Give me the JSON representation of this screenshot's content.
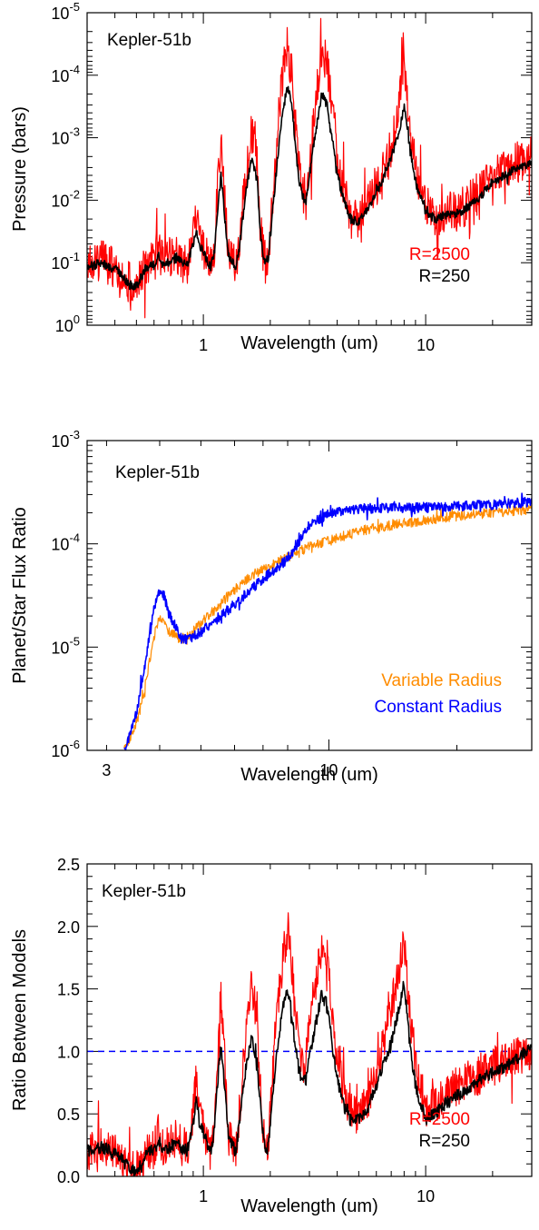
{
  "chart_data": [
    {
      "type": "line",
      "annotation": "Kepler-51b",
      "xlabel": "Wavelength (um)",
      "ylabel": "Pressure (bars)",
      "xscale": "log",
      "yscale": "log",
      "yaxis_inverted": true,
      "xlim": [
        0.3,
        30
      ],
      "ylim": [
        1,
        1e-05
      ],
      "xticks": [
        {
          "value": 1,
          "label": "1"
        },
        {
          "value": 10,
          "label": "10"
        }
      ],
      "yticks": [
        {
          "value": 1e-05,
          "base": "10",
          "exp": "-5"
        },
        {
          "value": 0.0001,
          "base": "10",
          "exp": "-4"
        },
        {
          "value": 0.001,
          "base": "10",
          "exp": "-3"
        },
        {
          "value": 0.01,
          "base": "10",
          "exp": "-2"
        },
        {
          "value": 0.1,
          "base": "10",
          "exp": "-1"
        },
        {
          "value": 1,
          "base": "10",
          "exp": "0"
        }
      ],
      "legend_placement": "bottom-right",
      "series": [
        {
          "name": "R=2500",
          "color": "#ff0000",
          "noise": 0.55,
          "x": [
            0.3,
            0.32,
            0.35,
            0.38,
            0.4,
            0.42,
            0.45,
            0.48,
            0.5,
            0.53,
            0.56,
            0.6,
            0.63,
            0.66,
            0.7,
            0.75,
            0.78,
            0.8,
            0.85,
            0.9,
            0.93,
            0.96,
            1.0,
            1.05,
            1.08,
            1.12,
            1.15,
            1.2,
            1.25,
            1.3,
            1.35,
            1.4,
            1.45,
            1.55,
            1.65,
            1.75,
            1.8,
            1.85,
            1.9,
            1.95,
            2.0,
            2.1,
            2.2,
            2.3,
            2.4,
            2.5,
            2.6,
            2.7,
            2.8,
            2.9,
            3.0,
            3.2,
            3.4,
            3.6,
            3.8,
            4.0,
            4.3,
            4.6,
            5.0,
            5.5,
            6.0,
            6.5,
            7.0,
            7.5,
            8.0,
            8.5,
            9.0,
            10.0,
            11.0,
            12.0,
            14.0,
            16.0,
            18.0,
            20.0,
            23.0,
            26.0,
            30.0
          ],
          "y": [
            0.11,
            0.1,
            0.09,
            0.11,
            0.12,
            0.13,
            0.18,
            0.24,
            0.24,
            0.15,
            0.11,
            0.1,
            0.06,
            0.1,
            0.09,
            0.07,
            0.08,
            0.1,
            0.1,
            0.04,
            0.02,
            0.04,
            0.06,
            0.1,
            0.12,
            0.06,
            0.01,
            0.001,
            0.01,
            0.08,
            0.1,
            0.12,
            0.05,
            0.004,
            0.0008,
            0.003,
            0.02,
            0.06,
            0.1,
            0.1,
            0.03,
            0.003,
            0.0003,
            7e-05,
            4e-05,
            0.0001,
            0.0007,
            0.003,
            0.008,
            0.01,
            0.003,
            0.0003,
            4e-05,
            6e-05,
            0.0003,
            0.002,
            0.008,
            0.018,
            0.02,
            0.012,
            0.006,
            0.003,
            0.0015,
            0.0005,
            5e-05,
            0.0008,
            0.003,
            0.012,
            0.02,
            0.015,
            0.015,
            0.01,
            0.006,
            0.004,
            0.003,
            0.0025,
            0.002
          ]
        },
        {
          "name": "R=250",
          "color": "#000000",
          "noise": 0.12,
          "x": [
            0.3,
            0.32,
            0.35,
            0.38,
            0.4,
            0.42,
            0.45,
            0.48,
            0.5,
            0.53,
            0.56,
            0.6,
            0.63,
            0.66,
            0.7,
            0.75,
            0.78,
            0.8,
            0.85,
            0.9,
            0.93,
            0.96,
            1.0,
            1.05,
            1.08,
            1.12,
            1.15,
            1.2,
            1.25,
            1.3,
            1.35,
            1.4,
            1.45,
            1.55,
            1.65,
            1.75,
            1.8,
            1.85,
            1.9,
            1.95,
            2.0,
            2.1,
            2.2,
            2.3,
            2.4,
            2.5,
            2.6,
            2.7,
            2.8,
            2.9,
            3.0,
            3.2,
            3.4,
            3.6,
            3.8,
            4.0,
            4.3,
            4.6,
            5.0,
            5.5,
            6.0,
            6.5,
            7.0,
            7.5,
            8.0,
            8.5,
            9.0,
            10.0,
            11.0,
            12.0,
            14.0,
            16.0,
            18.0,
            20.0,
            23.0,
            26.0,
            30.0
          ],
          "y": [
            0.12,
            0.11,
            0.1,
            0.12,
            0.13,
            0.14,
            0.2,
            0.25,
            0.24,
            0.16,
            0.12,
            0.11,
            0.08,
            0.11,
            0.1,
            0.08,
            0.09,
            0.1,
            0.1,
            0.05,
            0.03,
            0.05,
            0.07,
            0.1,
            0.12,
            0.07,
            0.02,
            0.004,
            0.02,
            0.08,
            0.1,
            0.12,
            0.06,
            0.008,
            0.002,
            0.005,
            0.03,
            0.07,
            0.1,
            0.1,
            0.04,
            0.006,
            0.001,
            0.0003,
            0.00015,
            0.0003,
            0.0015,
            0.005,
            0.009,
            0.01,
            0.004,
            0.0008,
            0.0002,
            0.0003,
            0.001,
            0.004,
            0.01,
            0.02,
            0.022,
            0.014,
            0.008,
            0.004,
            0.002,
            0.001,
            0.0003,
            0.0015,
            0.005,
            0.015,
            0.02,
            0.018,
            0.016,
            0.012,
            0.008,
            0.005,
            0.004,
            0.003,
            0.0025
          ]
        }
      ]
    },
    {
      "type": "line",
      "annotation": "Kepler-51b",
      "xlabel": "Wavelength (um)",
      "ylabel": "Planet/Star Flux Ratio",
      "xscale": "log",
      "yscale": "log",
      "yaxis_inverted": false,
      "xlim": [
        2.7,
        30
      ],
      "ylim": [
        1e-06,
        0.001
      ],
      "xticks": [
        {
          "value": 3,
          "label": "3"
        },
        {
          "value": 10,
          "label": "10"
        }
      ],
      "yticks": [
        {
          "value": 1e-06,
          "base": "10",
          "exp": "-6"
        },
        {
          "value": 1e-05,
          "base": "10",
          "exp": "-5"
        },
        {
          "value": 0.0001,
          "base": "10",
          "exp": "-4"
        },
        {
          "value": 0.001,
          "base": "10",
          "exp": "-3"
        }
      ],
      "legend_placement": "bottom-right",
      "series": [
        {
          "name": "Variable Radius",
          "color": "#ff8c00",
          "noise": 0.08,
          "x": [
            3.3,
            3.4,
            3.55,
            3.7,
            3.8,
            3.9,
            4.0,
            4.1,
            4.2,
            4.35,
            4.5,
            4.7,
            5.0,
            5.5,
            6.0,
            6.5,
            7.0,
            7.5,
            8.0,
            8.5,
            9.0,
            10.0,
            11.0,
            12.0,
            14.0,
            16.0,
            18.0,
            20.0,
            25.0,
            30.0
          ],
          "y": [
            1e-06,
            1.3e-06,
            2e-06,
            4e-06,
            8e-06,
            1.4e-05,
            1.9e-05,
            1.8e-05,
            1.4e-05,
            1.3e-05,
            1.2e-05,
            1.3e-05,
            1.7e-05,
            2.5e-05,
            3.6e-05,
            4.7e-05,
            5.8e-05,
            6.6e-05,
            7.4e-05,
            8.4e-05,
            9.4e-05,
            0.000107,
            0.000121,
            0.000135,
            0.000151,
            0.000165,
            0.000176,
            0.000186,
            0.000203,
            0.000215
          ]
        },
        {
          "name": "Constant Radius",
          "color": "#0000ff",
          "noise": 0.08,
          "x": [
            3.3,
            3.4,
            3.55,
            3.7,
            3.8,
            3.9,
            4.0,
            4.1,
            4.2,
            4.35,
            4.5,
            4.7,
            5.0,
            5.5,
            6.0,
            6.5,
            7.0,
            7.5,
            8.0,
            8.5,
            9.0,
            10.0,
            11.0,
            12.0,
            14.0,
            16.0,
            18.0,
            20.0,
            25.0,
            30.0
          ],
          "y": [
            1e-06,
            1.4e-06,
            2.6e-06,
            7e-06,
            1.5e-05,
            2.6e-05,
            3.6e-05,
            3.1e-05,
            2.1e-05,
            1.6e-05,
            1.2e-05,
            1.2e-05,
            1.4e-05,
            1.9e-05,
            2.6e-05,
            3.5e-05,
            4.6e-05,
            5.7e-05,
            7.2e-05,
            0.000105,
            0.000155,
            0.000195,
            0.000215,
            0.00022,
            0.000222,
            0.000225,
            0.000228,
            0.000232,
            0.00024,
            0.000255
          ]
        }
      ]
    },
    {
      "type": "line",
      "annotation": "Kepler-51b",
      "xlabel": "Wavelength (um)",
      "ylabel": "Ratio Between Models",
      "xscale": "log",
      "yscale": "linear",
      "yaxis_inverted": false,
      "xlim": [
        0.3,
        30
      ],
      "ylim": [
        0,
        2.5
      ],
      "xticks": [
        {
          "value": 1,
          "label": "1"
        },
        {
          "value": 10,
          "label": "10"
        }
      ],
      "yticks": [
        {
          "value": 0.0,
          "label": "0.0"
        },
        {
          "value": 0.5,
          "label": "0.5"
        },
        {
          "value": 1.0,
          "label": "1.0"
        },
        {
          "value": 1.5,
          "label": "1.5"
        },
        {
          "value": 2.0,
          "label": "2.0"
        },
        {
          "value": 2.5,
          "label": "2.5"
        }
      ],
      "reference_line": {
        "y": 1.0,
        "color": "#0000ff",
        "style": "dashed"
      },
      "legend_placement": "bottom-right",
      "series": [
        {
          "name": "R=2500",
          "color": "#ff0000",
          "noise": 0.16,
          "x": [
            0.3,
            0.32,
            0.35,
            0.38,
            0.4,
            0.42,
            0.45,
            0.48,
            0.5,
            0.53,
            0.56,
            0.6,
            0.63,
            0.66,
            0.7,
            0.75,
            0.78,
            0.8,
            0.85,
            0.9,
            0.93,
            0.96,
            1.0,
            1.05,
            1.08,
            1.12,
            1.15,
            1.2,
            1.25,
            1.3,
            1.35,
            1.4,
            1.45,
            1.55,
            1.65,
            1.75,
            1.8,
            1.85,
            1.9,
            1.95,
            2.0,
            2.1,
            2.2,
            2.3,
            2.4,
            2.5,
            2.6,
            2.7,
            2.8,
            2.9,
            3.0,
            3.2,
            3.4,
            3.6,
            3.8,
            4.0,
            4.3,
            4.6,
            5.0,
            5.5,
            6.0,
            6.5,
            7.0,
            7.5,
            8.0,
            8.5,
            9.0,
            10.0,
            11.0,
            12.0,
            14.0,
            16.0,
            18.0,
            20.0,
            23.0,
            26.0,
            30.0
          ],
          "y": [
            0.2,
            0.22,
            0.25,
            0.2,
            0.18,
            0.16,
            0.08,
            0.04,
            0.04,
            0.12,
            0.2,
            0.22,
            0.35,
            0.22,
            0.25,
            0.3,
            0.28,
            0.22,
            0.22,
            0.5,
            0.8,
            0.5,
            0.4,
            0.25,
            0.2,
            0.4,
            0.9,
            1.45,
            0.9,
            0.3,
            0.25,
            0.2,
            0.5,
            1.1,
            1.55,
            1.2,
            0.75,
            0.4,
            0.22,
            0.22,
            0.5,
            1.1,
            1.5,
            1.8,
            1.95,
            1.7,
            1.25,
            1.05,
            0.9,
            0.95,
            1.2,
            1.55,
            1.85,
            1.75,
            1.35,
            0.95,
            0.65,
            0.5,
            0.5,
            0.62,
            0.85,
            1.1,
            1.35,
            1.6,
            1.9,
            1.3,
            0.9,
            0.55,
            0.58,
            0.65,
            0.72,
            0.78,
            0.82,
            0.88,
            0.92,
            0.97,
            1.0
          ]
        },
        {
          "name": "R=250",
          "color": "#000000",
          "noise": 0.05,
          "x": [
            0.3,
            0.32,
            0.35,
            0.38,
            0.4,
            0.42,
            0.45,
            0.48,
            0.5,
            0.53,
            0.56,
            0.6,
            0.63,
            0.66,
            0.7,
            0.75,
            0.78,
            0.8,
            0.85,
            0.9,
            0.93,
            0.96,
            1.0,
            1.05,
            1.08,
            1.12,
            1.15,
            1.2,
            1.25,
            1.3,
            1.35,
            1.4,
            1.45,
            1.55,
            1.65,
            1.75,
            1.8,
            1.85,
            1.9,
            1.95,
            2.0,
            2.1,
            2.2,
            2.3,
            2.4,
            2.5,
            2.6,
            2.7,
            2.8,
            2.9,
            3.0,
            3.2,
            3.4,
            3.6,
            3.8,
            4.0,
            4.3,
            4.6,
            5.0,
            5.5,
            6.0,
            6.5,
            7.0,
            7.5,
            8.0,
            8.5,
            9.0,
            10.0,
            11.0,
            12.0,
            14.0,
            16.0,
            18.0,
            20.0,
            23.0,
            26.0,
            30.0
          ],
          "y": [
            0.2,
            0.22,
            0.24,
            0.2,
            0.18,
            0.16,
            0.09,
            0.05,
            0.05,
            0.12,
            0.19,
            0.21,
            0.3,
            0.2,
            0.23,
            0.27,
            0.26,
            0.22,
            0.22,
            0.42,
            0.62,
            0.42,
            0.35,
            0.25,
            0.2,
            0.35,
            0.7,
            1.05,
            0.7,
            0.3,
            0.25,
            0.2,
            0.42,
            0.85,
            1.12,
            0.9,
            0.6,
            0.35,
            0.22,
            0.22,
            0.42,
            0.85,
            1.15,
            1.4,
            1.5,
            1.3,
            0.98,
            0.85,
            0.75,
            0.78,
            0.95,
            1.22,
            1.45,
            1.38,
            1.05,
            0.78,
            0.55,
            0.45,
            0.45,
            0.55,
            0.72,
            0.9,
            1.08,
            1.3,
            1.55,
            1.05,
            0.72,
            0.45,
            0.5,
            0.57,
            0.65,
            0.72,
            0.78,
            0.83,
            0.88,
            0.95,
            1.05
          ]
        }
      ]
    }
  ]
}
